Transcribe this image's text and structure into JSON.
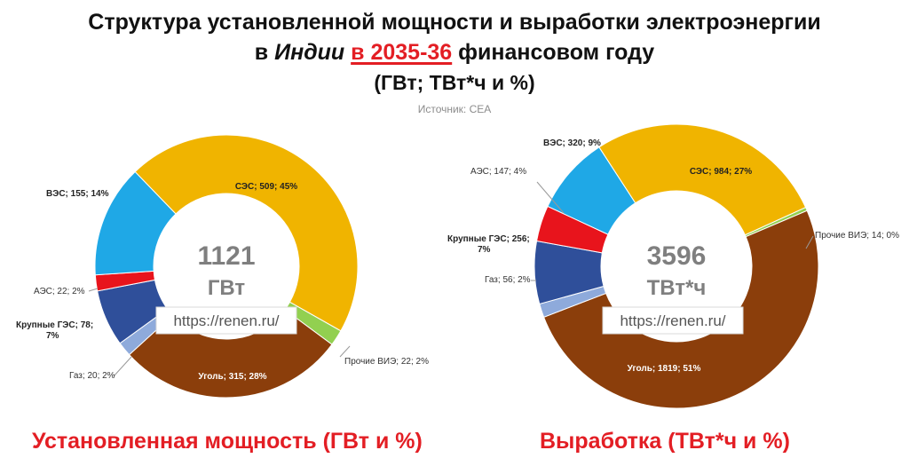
{
  "title": {
    "line1": "Структура установленной мощности и выработки электроэнергии",
    "line2_prefix": "в ",
    "line2_country": "Индии",
    "line2_year": "в 2035-36",
    "line2_suffix": " финансовом году",
    "line3": "(ГВт; ТВт*ч и %)"
  },
  "source": "Источник: CEA",
  "watermark": "https://renen.ru/",
  "chart_data": [
    {
      "type": "pie",
      "center_value": "1121",
      "center_unit": "ГВт",
      "caption": "Установленная мощность (ГВт и %)",
      "slices": [
        {
          "label": "СЭС; 509; 45%",
          "value": 509,
          "color": "#f0b400"
        },
        {
          "label": "Прочие ВИЭ; 22; 2%",
          "value": 22,
          "color": "#92d050"
        },
        {
          "label": "Уголь; 315; 28%",
          "value": 315,
          "color": "#8b3e0b"
        },
        {
          "label": "Газ; 20; 2%",
          "value": 20,
          "color": "#8eaadb"
        },
        {
          "label": "Крупные ГЭС; 78; 7%",
          "value": 78,
          "color": "#2f4f9a"
        },
        {
          "label": "АЭС; 22; 2%",
          "value": 22,
          "color": "#e8141c"
        },
        {
          "label": "ВЭС; 155; 14%",
          "value": 155,
          "color": "#1fa8e6"
        }
      ]
    },
    {
      "type": "pie",
      "center_value": "3596",
      "center_unit": "ТВт*ч",
      "caption": "Выработка (ТВт*ч и %)",
      "slices": [
        {
          "label": "СЭС; 984; 27%",
          "value": 984,
          "color": "#f0b400"
        },
        {
          "label": "Прочие ВИЭ; 14; 0%",
          "value": 14,
          "color": "#92d050"
        },
        {
          "label": "Уголь; 1819; 51%",
          "value": 1819,
          "color": "#8b3e0b"
        },
        {
          "label": "Газ; 56; 2%",
          "value": 56,
          "color": "#8eaadb"
        },
        {
          "label": "Крупные ГЭС; 256; 7%",
          "value": 256,
          "color": "#2f4f9a"
        },
        {
          "label": "АЭС; 147; 4%",
          "value": 147,
          "color": "#e8141c"
        },
        {
          "label": "ВЭС; 320; 9%",
          "value": 320,
          "color": "#1fa8e6"
        }
      ]
    }
  ]
}
